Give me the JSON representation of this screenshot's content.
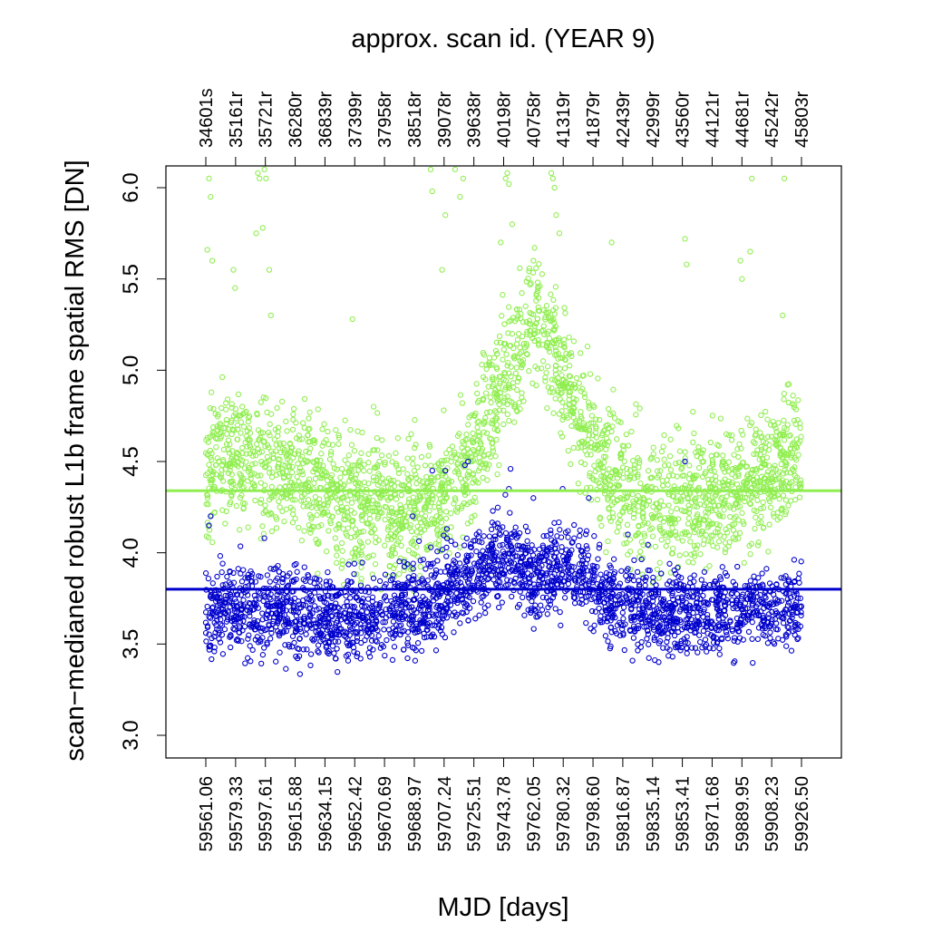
{
  "chart_data": {
    "type": "scatter",
    "title": "approx. scan id. (YEAR 9)",
    "xlabel": "MJD [days]",
    "ylabel": "scan−medianed robust L1b frame spatial RMS [DN]",
    "xlim": [
      59561.06,
      59926.5
    ],
    "ylim": [
      3.0,
      6.0
    ],
    "grid": false,
    "legend": "none",
    "x_ticks": [
      "59561.06",
      "59579.33",
      "59597.61",
      "59615.88",
      "59634.15",
      "59652.42",
      "59670.69",
      "59688.97",
      "59707.24",
      "59725.51",
      "59743.78",
      "59762.05",
      "59780.32",
      "59798.60",
      "59816.87",
      "59835.14",
      "59853.41",
      "59871.68",
      "59889.95",
      "59908.23",
      "59926.50"
    ],
    "top_ticks": [
      "34601s",
      "35161r",
      "35721r",
      "36280r",
      "36839r",
      "37399r",
      "37958r",
      "38518r",
      "39078r",
      "39638r",
      "40198r",
      "40758r",
      "41319r",
      "41879r",
      "42439r",
      "42999r",
      "43560r",
      "44121r",
      "44681r",
      "45242r",
      "45803r"
    ],
    "y_ticks": [
      "3.0",
      "3.5",
      "4.0",
      "4.5",
      "5.0",
      "5.5",
      "6.0"
    ],
    "series": [
      {
        "color": "#90ee50",
        "median": 4.34,
        "profile_x": [
          59561.06,
          59575,
          59590,
          59605,
          59620,
          59635,
          59650,
          59665,
          59680,
          59695,
          59710,
          59725,
          59735,
          59745,
          59755,
          59762,
          59770,
          59780,
          59790,
          59800,
          59810,
          59820,
          59835,
          59850,
          59865,
          59880,
          59895,
          59910,
          59926.5
        ],
        "profile_y": [
          4.45,
          4.55,
          4.5,
          4.45,
          4.4,
          4.32,
          4.28,
          4.25,
          4.22,
          4.28,
          4.35,
          4.5,
          4.75,
          4.95,
          5.15,
          5.3,
          5.2,
          5.0,
          4.75,
          4.55,
          4.4,
          4.32,
          4.28,
          4.28,
          4.3,
          4.33,
          4.4,
          4.48,
          4.55
        ],
        "spread": 0.18,
        "outliers_x": [
          59562,
          59563,
          59564,
          59565,
          59578,
          59579,
          59592,
          59593,
          59594,
          59596,
          59597,
          59598,
          59600,
          59601,
          59651,
          59664,
          59699,
          59700,
          59706,
          59708,
          59714,
          59717,
          59719,
          59742,
          59745,
          59746,
          59747,
          59749,
          59762,
          59773,
          59774,
          59775,
          59776,
          59778,
          59810,
          59855,
          59856,
          59889,
          59890,
          59895,
          59896,
          59915,
          59916
        ],
        "outliers_y": [
          5.66,
          6.05,
          5.95,
          5.6,
          5.55,
          5.45,
          5.75,
          6.08,
          6.05,
          5.78,
          6.1,
          6.05,
          5.55,
          5.3,
          5.28,
          4.8,
          6.1,
          5.98,
          5.55,
          5.85,
          6.1,
          5.95,
          6.05,
          5.7,
          6.05,
          6.08,
          6.02,
          5.8,
          5.6,
          6.08,
          6.05,
          6.0,
          5.85,
          5.75,
          5.7,
          5.72,
          5.58,
          5.6,
          5.5,
          5.65,
          6.05,
          5.3,
          6.05
        ]
      },
      {
        "color": "#0000cc",
        "median": 3.8,
        "profile_x": [
          59561.06,
          59575,
          59590,
          59605,
          59620,
          59635,
          59650,
          59665,
          59680,
          59695,
          59710,
          59725,
          59735,
          59745,
          59755,
          59762,
          59770,
          59780,
          59790,
          59800,
          59810,
          59820,
          59835,
          59850,
          59865,
          59880,
          59895,
          59910,
          59926.5
        ],
        "profile_y": [
          3.68,
          3.7,
          3.68,
          3.68,
          3.66,
          3.64,
          3.65,
          3.66,
          3.68,
          3.72,
          3.8,
          3.9,
          3.95,
          4.0,
          3.92,
          3.88,
          3.9,
          3.92,
          3.88,
          3.82,
          3.75,
          3.7,
          3.68,
          3.66,
          3.67,
          3.68,
          3.68,
          3.68,
          3.7
        ],
        "spread": 0.12,
        "outliers_x": [
          59563,
          59564,
          59597,
          59688,
          59700,
          59708,
          59720,
          59722,
          59747,
          59748,
          59762,
          59780,
          59796,
          59820,
          59855
        ],
        "outliers_y": [
          4.15,
          4.2,
          4.08,
          4.2,
          4.45,
          4.45,
          4.48,
          4.5,
          4.35,
          4.46,
          4.3,
          4.35,
          4.3,
          4.1,
          4.5
        ]
      }
    ]
  }
}
